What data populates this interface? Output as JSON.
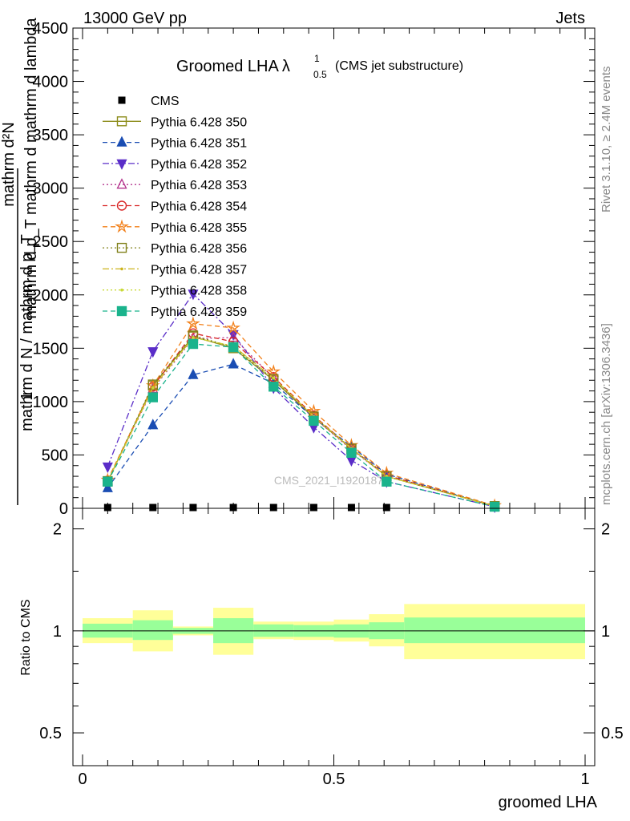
{
  "header": {
    "left": "13000 GeV pp",
    "right": "Jets"
  },
  "side_labels": {
    "rivet": "Rivet 3.1.10, ≥ 2.4M events",
    "mcplots": "mcplots.cern.ch [arXiv:1306.3436]"
  },
  "watermark": "CMS_2021_I1920187",
  "colors": {
    "band_inner": "#99ff99",
    "band_outer": "#ffff99",
    "cms": "#000000"
  },
  "chart_data": [
    {
      "type": "line",
      "title": "Groomed LHA",
      "title_symbol": "λ",
      "title_sup": "1",
      "title_sub": "0.5",
      "subtitle": "(CMS jet substructure)",
      "ylabel_numerator": "mathrm d²N",
      "ylabel_denominator": "mathrm d p_T mathrm d mathrm d lambda",
      "ylabel_prefix_num": "1",
      "ylabel_prefix_den": "mathrm d N / mathrm d p_T",
      "ylim": [
        0,
        4500
      ],
      "yticks": [
        0,
        500,
        1000,
        1500,
        2000,
        2500,
        3000,
        3500,
        4000,
        4500
      ],
      "xlim": [
        -0.02,
        1.02
      ],
      "legend_position": "top-left",
      "x": [
        0.05,
        0.14,
        0.22,
        0.3,
        0.38,
        0.46,
        0.535,
        0.605,
        0.82
      ],
      "cms": {
        "name": "CMS",
        "x": [
          0.05,
          0.14,
          0.22,
          0.3,
          0.38,
          0.46,
          0.535,
          0.605
        ],
        "values": [
          0,
          0,
          0,
          0,
          0,
          0,
          0,
          0
        ]
      },
      "series": [
        {
          "name": "Pythia 6.428 350",
          "color": "#8c8c1a",
          "dash": "",
          "marker": "square-open",
          "values": [
            250,
            1150,
            1610,
            1500,
            1200,
            850,
            560,
            300,
            20
          ]
        },
        {
          "name": "Pythia 6.428 351",
          "color": "#1a4db3",
          "dash": "6,4",
          "marker": "triangle-up-filled",
          "values": [
            190,
            780,
            1250,
            1350,
            1170,
            850,
            580,
            320,
            20
          ]
        },
        {
          "name": "Pythia 6.428 352",
          "color": "#5a2dc8",
          "dash": "8,3,2,3",
          "marker": "triangle-down-filled",
          "values": [
            390,
            1470,
            2010,
            1630,
            1130,
            760,
            450,
            250,
            15
          ]
        },
        {
          "name": "Pythia 6.428 353",
          "color": "#b3338c",
          "dash": "2,3",
          "marker": "triangle-up-open",
          "values": [
            255,
            1120,
            1590,
            1600,
            1220,
            850,
            550,
            300,
            20
          ]
        },
        {
          "name": "Pythia 6.428 354",
          "color": "#d92626",
          "dash": "6,4",
          "marker": "circle-open",
          "values": [
            260,
            1140,
            1640,
            1560,
            1230,
            870,
            560,
            310,
            20
          ]
        },
        {
          "name": "Pythia 6.428 355",
          "color": "#f2801a",
          "dash": "6,4",
          "marker": "star-open",
          "values": [
            265,
            1150,
            1730,
            1690,
            1280,
            910,
            590,
            330,
            25
          ]
        },
        {
          "name": "Pythia 6.428 356",
          "color": "#80801a",
          "dash": "2,3",
          "marker": "square-open",
          "values": [
            255,
            1160,
            1620,
            1510,
            1210,
            860,
            560,
            300,
            20
          ]
        },
        {
          "name": "Pythia 6.428 357",
          "color": "#ccb31a",
          "dash": "8,3,2,3",
          "marker": "dot",
          "values": [
            255,
            1130,
            1600,
            1520,
            1220,
            860,
            560,
            300,
            20
          ]
        },
        {
          "name": "Pythia 6.428 358",
          "color": "#c8d933",
          "dash": "2,3",
          "marker": "dot",
          "values": [
            255,
            1130,
            1600,
            1520,
            1220,
            860,
            560,
            300,
            20
          ]
        },
        {
          "name": "Pythia 6.428 359",
          "color": "#1ab38c",
          "dash": "6,4",
          "marker": "square-filled",
          "values": [
            250,
            1040,
            1540,
            1510,
            1140,
            820,
            520,
            250,
            15
          ]
        }
      ]
    },
    {
      "type": "area",
      "ylabel": "Ratio to CMS",
      "xlabel": "groomed LHA",
      "ylim": [
        0.4,
        2.3
      ],
      "log_y": true,
      "yticks": [
        0.5,
        1,
        2
      ],
      "xticks": [
        0,
        0.5,
        1
      ],
      "reference": 1,
      "bins": [
        {
          "xlo": 0.0,
          "xhi": 0.1,
          "inner": [
            0.955,
            1.05
          ],
          "outer": [
            0.92,
            1.09
          ]
        },
        {
          "xlo": 0.1,
          "xhi": 0.18,
          "inner": [
            0.94,
            1.075
          ],
          "outer": [
            0.87,
            1.15
          ]
        },
        {
          "xlo": 0.18,
          "xhi": 0.26,
          "inner": [
            0.98,
            1.02
          ],
          "outer": [
            0.97,
            1.03
          ]
        },
        {
          "xlo": 0.26,
          "xhi": 0.34,
          "inner": [
            0.92,
            1.09
          ],
          "outer": [
            0.85,
            1.17
          ]
        },
        {
          "xlo": 0.34,
          "xhi": 0.42,
          "inner": [
            0.96,
            1.045
          ],
          "outer": [
            0.945,
            1.065
          ]
        },
        {
          "xlo": 0.42,
          "xhi": 0.5,
          "inner": [
            0.96,
            1.04
          ],
          "outer": [
            0.94,
            1.065
          ]
        },
        {
          "xlo": 0.5,
          "xhi": 0.57,
          "inner": [
            0.955,
            1.045
          ],
          "outer": [
            0.93,
            1.08
          ]
        },
        {
          "xlo": 0.57,
          "xhi": 0.64,
          "inner": [
            0.945,
            1.06
          ],
          "outer": [
            0.9,
            1.12
          ]
        },
        {
          "xlo": 0.64,
          "xhi": 1.0,
          "inner": [
            0.92,
            1.095
          ],
          "outer": [
            0.825,
            1.2
          ]
        }
      ]
    }
  ]
}
